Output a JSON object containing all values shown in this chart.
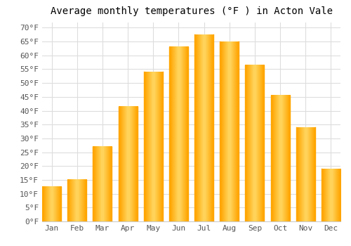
{
  "title": "Average monthly temperatures (°F ) in Acton Vale",
  "months": [
    "Jan",
    "Feb",
    "Mar",
    "Apr",
    "May",
    "Jun",
    "Jul",
    "Aug",
    "Sep",
    "Oct",
    "Nov",
    "Dec"
  ],
  "values": [
    12.5,
    15,
    27,
    41.5,
    54,
    63,
    67.5,
    65,
    56.5,
    45.5,
    34,
    19
  ],
  "bar_color_center": "#FFD966",
  "bar_color_edge": "#FFA500",
  "ylim": [
    0,
    72
  ],
  "yticks": [
    0,
    5,
    10,
    15,
    20,
    25,
    30,
    35,
    40,
    45,
    50,
    55,
    60,
    65,
    70
  ],
  "ytick_labels": [
    "0°F",
    "5°F",
    "10°F",
    "15°F",
    "20°F",
    "25°F",
    "30°F",
    "35°F",
    "40°F",
    "45°F",
    "50°F",
    "55°F",
    "60°F",
    "65°F",
    "70°F"
  ],
  "background_color": "#FFFFFF",
  "plot_bg_color": "#FFFFFF",
  "grid_color": "#DDDDDD",
  "title_fontsize": 10,
  "tick_fontsize": 8,
  "font_family": "monospace"
}
